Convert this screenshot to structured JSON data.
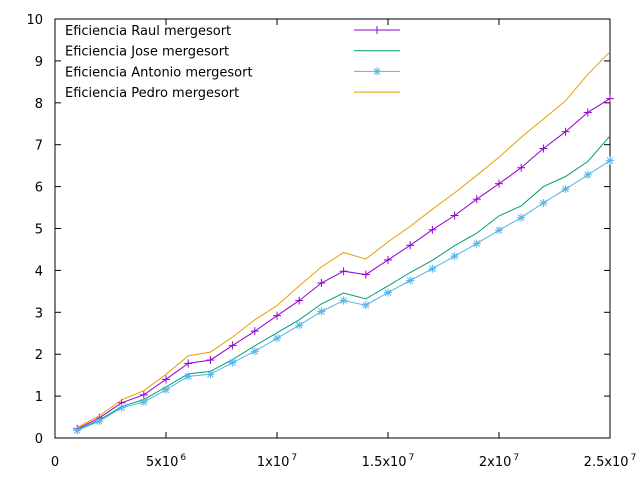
{
  "chart_data": {
    "type": "line",
    "title": "",
    "xlabel": "",
    "ylabel": "",
    "xlim": [
      0,
      25000000
    ],
    "ylim": [
      0,
      10
    ],
    "grid": false,
    "legend_position": "top-left",
    "x_ticks": [
      {
        "value": 0,
        "label": "0"
      },
      {
        "value": 5000000,
        "label": "5x10",
        "exp": "6"
      },
      {
        "value": 10000000,
        "label": "1x10",
        "exp": "7"
      },
      {
        "value": 15000000,
        "label": "1.5x10",
        "exp": "7"
      },
      {
        "value": 20000000,
        "label": "2x10",
        "exp": "7"
      },
      {
        "value": 25000000,
        "label": "2.5x10",
        "exp": "7"
      }
    ],
    "y_ticks": [
      {
        "value": 0,
        "label": "0"
      },
      {
        "value": 1,
        "label": "1"
      },
      {
        "value": 2,
        "label": "2"
      },
      {
        "value": 3,
        "label": "3"
      },
      {
        "value": 4,
        "label": "4"
      },
      {
        "value": 5,
        "label": "5"
      },
      {
        "value": 6,
        "label": "6"
      },
      {
        "value": 7,
        "label": "7"
      },
      {
        "value": 8,
        "label": "8"
      },
      {
        "value": 9,
        "label": "9"
      },
      {
        "value": 10,
        "label": "10"
      }
    ],
    "x": [
      1000000,
      2000000,
      3000000,
      4000000,
      5000000,
      6000000,
      7000000,
      8000000,
      9000000,
      10000000,
      11000000,
      12000000,
      13000000,
      14000000,
      15000000,
      16000000,
      17000000,
      18000000,
      19000000,
      20000000,
      21000000,
      22000000,
      23000000,
      24000000,
      25000000
    ],
    "series": [
      {
        "name": "Eficiencia Raul mergesort",
        "color": "#9400d3",
        "marker": "plus",
        "values": [
          0.22,
          0.48,
          0.84,
          1.03,
          1.4,
          1.78,
          1.86,
          2.21,
          2.55,
          2.92,
          3.28,
          3.7,
          3.98,
          3.9,
          4.25,
          4.6,
          4.97,
          5.31,
          5.7,
          6.07,
          6.45,
          6.91,
          7.31,
          7.77,
          8.1
        ]
      },
      {
        "name": "Eficiencia Jose mergesort",
        "color": "#009e73",
        "marker": "none",
        "values": [
          0.19,
          0.43,
          0.75,
          0.92,
          1.22,
          1.53,
          1.59,
          1.87,
          2.2,
          2.51,
          2.82,
          3.2,
          3.46,
          3.32,
          3.63,
          3.95,
          4.24,
          4.59,
          4.89,
          5.3,
          5.54,
          6.0,
          6.24,
          6.6,
          7.21
        ]
      },
      {
        "name": "Eficiencia Antonio mergesort",
        "color": "#56b4e9",
        "marker": "star",
        "values": [
          0.18,
          0.4,
          0.72,
          0.86,
          1.15,
          1.47,
          1.52,
          1.8,
          2.07,
          2.38,
          2.69,
          3.02,
          3.28,
          3.17,
          3.47,
          3.76,
          4.04,
          4.34,
          4.64,
          4.96,
          5.26,
          5.61,
          5.94,
          6.28,
          6.62
        ]
      },
      {
        "name": "Eficiencia Pedro mergesort",
        "color": "#e69f00",
        "marker": "none",
        "values": [
          0.25,
          0.53,
          0.91,
          1.13,
          1.52,
          1.96,
          2.05,
          2.41,
          2.82,
          3.16,
          3.63,
          4.08,
          4.43,
          4.27,
          4.68,
          5.05,
          5.46,
          5.85,
          6.27,
          6.7,
          7.18,
          7.61,
          8.05,
          8.68,
          9.22
        ]
      }
    ]
  }
}
